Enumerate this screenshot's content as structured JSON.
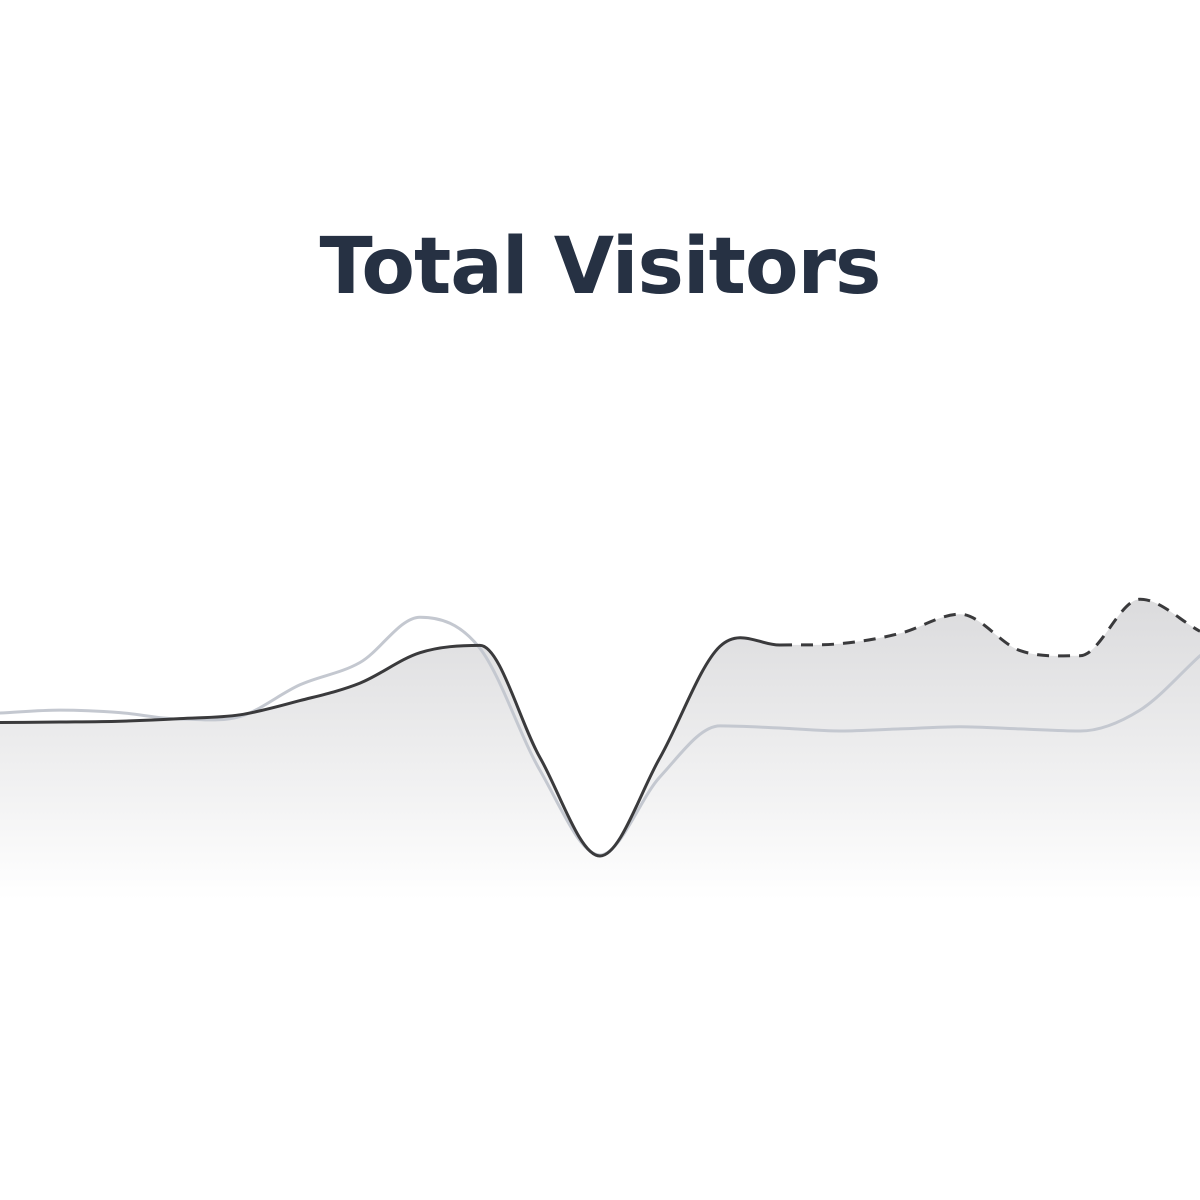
{
  "colors": {
    "title": "#263143",
    "primary_line": "#3a3a3c",
    "comparison_line": "#c4c8d0",
    "area_fill": "#d9d9db"
  },
  "chart_data": {
    "type": "area",
    "title": "Total Visitors",
    "xlabel": "",
    "ylabel": "",
    "x": [
      0,
      1,
      2,
      3,
      4,
      5,
      6,
      7,
      8,
      9,
      10,
      11,
      12,
      13,
      14,
      15,
      16,
      17,
      18,
      19,
      20
    ],
    "ylim": [
      0,
      100
    ],
    "series": [
      {
        "role": "primary",
        "solid_until_index": 13,
        "values": [
          31.2,
          31.3,
          31.5,
          32.1,
          33.0,
          36.3,
          40.4,
          47.5,
          49.2,
          23.0,
          0.0,
          23.0,
          49.0,
          49.3,
          49.6,
          52.0,
          56.5,
          48.0,
          46.8,
          60.0,
          52.5
        ]
      },
      {
        "role": "comparison",
        "values": [
          33.4,
          34.1,
          33.5,
          32.0,
          32.6,
          40.0,
          45.2,
          55.8,
          48.5,
          20.0,
          0.2,
          18.5,
          30.4,
          29.9,
          29.2,
          29.7,
          30.2,
          29.7,
          29.2,
          34.1,
          46.8
        ]
      }
    ]
  }
}
